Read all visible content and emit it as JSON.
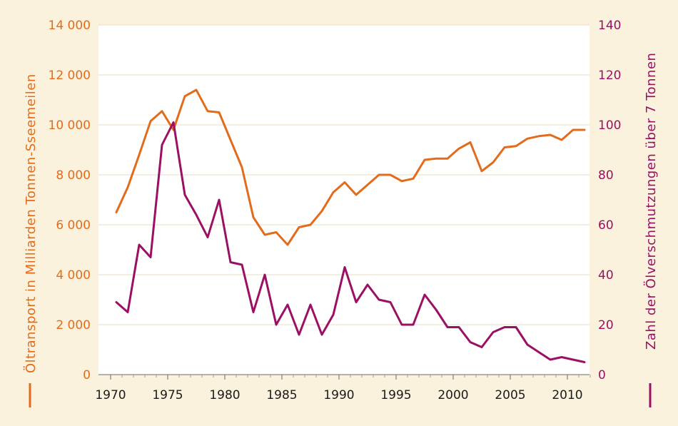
{
  "chart_data": {
    "type": "line",
    "title": "",
    "xlabel": "",
    "ylabel_left": "Öltransport in Milliarden Tonnen-Sseemeilen",
    "ylabel_right": "Zahl der Ölverschmutzungen über 7 Tonnen",
    "xlim": [
      1970,
      2012
    ],
    "ylim_left": [
      0,
      14000
    ],
    "ylim_right": [
      0,
      140
    ],
    "x_ticks": [
      "1970",
      "1975",
      "1980",
      "1985",
      "1990",
      "1995",
      "2000",
      "2005",
      "2010"
    ],
    "y_ticks_left": [
      "0",
      "2 000",
      "4 000",
      "6 000",
      "8 000",
      "10 000",
      "12 000",
      "14 000"
    ],
    "y_ticks_right": [
      "0",
      "20",
      "40",
      "60",
      "80",
      "100",
      "120",
      "140"
    ],
    "grid": "horizontal",
    "legend": "axis-titles",
    "series": [
      {
        "axis": "left",
        "color": "#e36c1c",
        "x": [
          1970.5,
          1971.5,
          1972.5,
          1973.5,
          1974.5,
          1975.5,
          1976.5,
          1977.5,
          1978.5,
          1979.5,
          1980.5,
          1981.5,
          1982.5,
          1983.5,
          1984.5,
          1985.5,
          1986.5,
          1987.5,
          1988.5,
          1989.5,
          1990.5,
          1991.5,
          1992.5,
          1993.5,
          1994.5,
          1995.5,
          1996.5,
          1997.5,
          1998.5,
          1999.5,
          2000.5,
          2001.5,
          2002.5,
          2003.5,
          2004.5,
          2005.5,
          2006.5,
          2007.5,
          2008.5,
          2009.5,
          2010.5,
          2011.5
        ],
        "values": [
          6500,
          7500,
          8800,
          10150,
          10550,
          9800,
          11150,
          11400,
          10550,
          10500,
          9400,
          8300,
          6300,
          5600,
          5700,
          5200,
          5900,
          6000,
          6550,
          7300,
          7700,
          7200,
          7600,
          8000,
          8000,
          7750,
          7850,
          8600,
          8650,
          8650,
          9050,
          9300,
          8150,
          8500,
          9100,
          9150,
          9450,
          9550,
          9600,
          9400,
          9800,
          9800
        ]
      },
      {
        "axis": "right",
        "color": "#9b1064",
        "x": [
          1970.5,
          1971.5,
          1972.5,
          1973.5,
          1974.5,
          1975.5,
          1976.5,
          1977.5,
          1978.5,
          1979.5,
          1980.5,
          1981.5,
          1982.5,
          1983.5,
          1984.5,
          1985.5,
          1986.5,
          1987.5,
          1988.5,
          1989.5,
          1990.5,
          1991.5,
          1992.5,
          1993.5,
          1994.5,
          1995.5,
          1996.5,
          1997.5,
          1998.5,
          1999.5,
          2000.5,
          2001.5,
          2002.5,
          2003.5,
          2004.5,
          2005.5,
          2006.5,
          2007.5,
          2008.5,
          2009.5,
          2010.5,
          2011.5
        ],
        "values": [
          29,
          25,
          52,
          47,
          92,
          101,
          72,
          64,
          55,
          70,
          45,
          44,
          25,
          40,
          20,
          28,
          16,
          28,
          16,
          24,
          43,
          29,
          36,
          30,
          29,
          20,
          20,
          32,
          26,
          19,
          19,
          13,
          11,
          17,
          19,
          19,
          12,
          9,
          6,
          7,
          6,
          5
        ]
      }
    ]
  }
}
